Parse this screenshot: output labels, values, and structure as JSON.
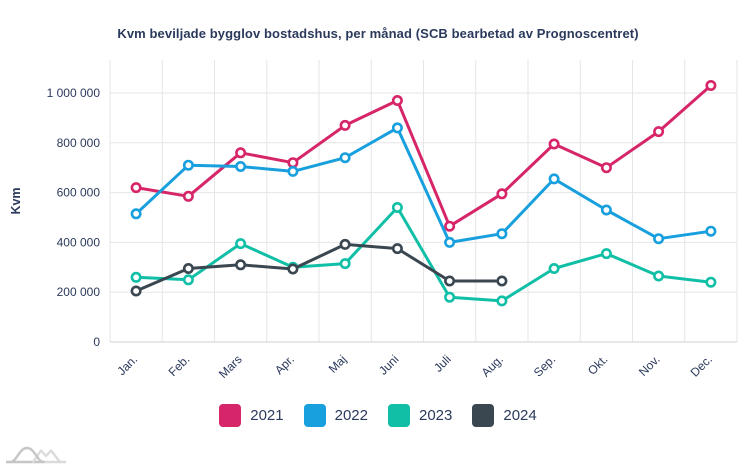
{
  "chart_data": {
    "type": "line",
    "title": "Kvm beviljade bygglov bostadshus, per månad (SCB bearbetad av Prognoscentret)",
    "ylabel": "Kvm",
    "xlabel": "",
    "categories": [
      "Jan.",
      "Feb.",
      "Mars",
      "Apr.",
      "Maj",
      "Juni",
      "Juli",
      "Aug.",
      "Sep.",
      "Okt.",
      "Nov.",
      "Dec."
    ],
    "y_ticks": [
      0,
      200000,
      400000,
      600000,
      800000,
      1000000
    ],
    "y_tick_labels": [
      "0",
      "200 000",
      "400 000",
      "600 000",
      "800 000",
      "1 000 000"
    ],
    "ylim": [
      0,
      1130000
    ],
    "grid": true,
    "legend_position": "bottom",
    "marker_style": "open-circle",
    "series": [
      {
        "name": "2021",
        "color": "#d62568",
        "values": [
          620000,
          585000,
          760000,
          720000,
          870000,
          970000,
          465000,
          595000,
          795000,
          700000,
          845000,
          1030000
        ]
      },
      {
        "name": "2022",
        "color": "#189fdd",
        "values": [
          515000,
          710000,
          705000,
          685000,
          740000,
          860000,
          400000,
          435000,
          655000,
          530000,
          415000,
          445000
        ]
      },
      {
        "name": "2023",
        "color": "#10bfa6",
        "values": [
          260000,
          250000,
          395000,
          300000,
          315000,
          540000,
          180000,
          165000,
          295000,
          355000,
          265000,
          240000
        ]
      },
      {
        "name": "2024",
        "color": "#3a4650",
        "values": [
          205000,
          295000,
          310000,
          293000,
          392000,
          375000,
          245000,
          245000
        ]
      }
    ]
  },
  "colors": {
    "text": "#2b3a5c",
    "gridline": "#e6e6e6",
    "axis_line": "#d2d2d2",
    "marker_fill": "#ffffff",
    "logo_dark": "#c6c6c6",
    "logo_light": "#dbdbdb"
  },
  "logo": {
    "name": "prognoscentret-logo"
  }
}
